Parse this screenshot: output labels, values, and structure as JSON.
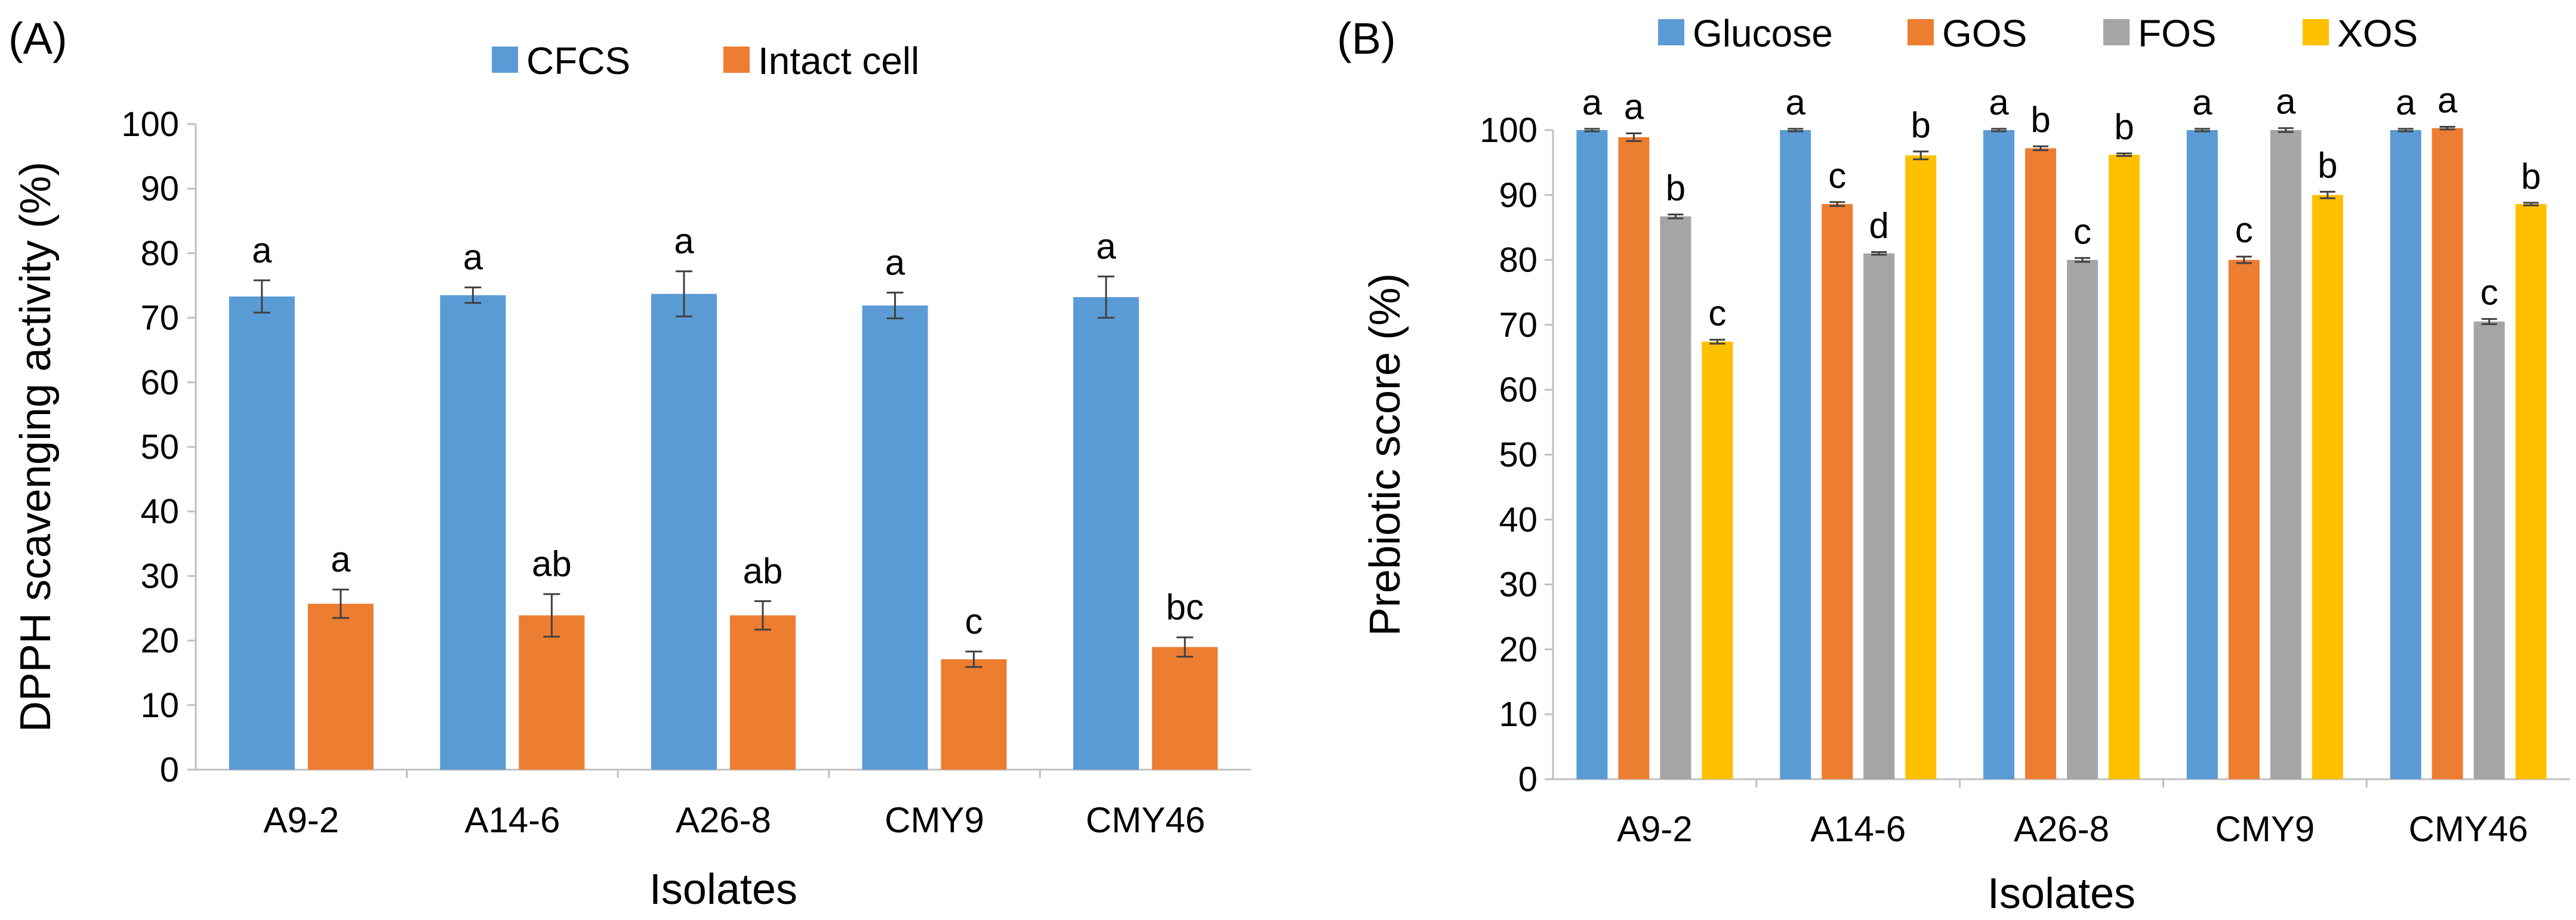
{
  "chart_data": [
    {
      "type": "bar",
      "panel_label": "(A)",
      "title": "",
      "xlabel": "Isolates",
      "ylabel": "DPPH scavenging activity (%)",
      "ylim": [
        0,
        100
      ],
      "yticks": [
        0,
        10,
        20,
        30,
        40,
        50,
        60,
        70,
        80,
        90,
        100
      ],
      "grid": false,
      "legend_position": "top-center",
      "categories": [
        "A9-2",
        "A14-6",
        "A26-8",
        "CMY9",
        "CMY46"
      ],
      "series": [
        {
          "name": "CFCS",
          "color": "#5B9BD5",
          "values": [
            73.3,
            73.5,
            73.7,
            71.9,
            73.2
          ],
          "errors": [
            2.5,
            1.2,
            3.5,
            2.0,
            3.2
          ],
          "letters": [
            "a",
            "a",
            "a",
            "a",
            "a"
          ]
        },
        {
          "name": "Intact cell",
          "color": "#ED7D31",
          "values": [
            25.7,
            23.9,
            23.9,
            17.1,
            19.0
          ],
          "errors": [
            2.2,
            3.3,
            2.2,
            1.2,
            1.5
          ],
          "letters": [
            "a",
            "ab",
            "ab",
            "c",
            "bc"
          ]
        }
      ]
    },
    {
      "type": "bar",
      "panel_label": "(B)",
      "title": "",
      "xlabel": "Isolates",
      "ylabel": "Prebiotic score (%)",
      "ylim": [
        0,
        100
      ],
      "yticks": [
        0,
        10,
        20,
        30,
        40,
        50,
        60,
        70,
        80,
        90,
        100
      ],
      "grid": false,
      "legend_position": "top-center",
      "categories": [
        "A9-2",
        "A14-6",
        "A26-8",
        "CMY9",
        "CMY46"
      ],
      "series": [
        {
          "name": "Glucose",
          "color": "#5B9BD5",
          "values": [
            100,
            100,
            100,
            100,
            100
          ],
          "errors": [
            0.2,
            0.2,
            0.2,
            0.2,
            0.2
          ],
          "letters": [
            "a",
            "a",
            "a",
            "a",
            "a"
          ]
        },
        {
          "name": "GOS",
          "color": "#ED7D31",
          "values": [
            98.9,
            88.6,
            97.2,
            80.0,
            100.3
          ],
          "errors": [
            0.6,
            0.3,
            0.3,
            0.5,
            0.2
          ],
          "letters": [
            "a",
            "c",
            "b",
            "c",
            "a"
          ]
        },
        {
          "name": "FOS",
          "color": "#A5A5A5",
          "values": [
            86.7,
            81.0,
            80.0,
            100.0,
            70.5
          ],
          "errors": [
            0.3,
            0.2,
            0.3,
            0.3,
            0.4
          ],
          "letters": [
            "b",
            "d",
            "c",
            "a",
            "c"
          ]
        },
        {
          "name": "XOS",
          "color": "#FFC000",
          "values": [
            67.4,
            96.1,
            96.2,
            90.0,
            88.6
          ],
          "errors": [
            0.3,
            0.6,
            0.2,
            0.5,
            0.2
          ],
          "letters": [
            "c",
            "b",
            "b",
            "b",
            "b"
          ]
        }
      ]
    }
  ]
}
